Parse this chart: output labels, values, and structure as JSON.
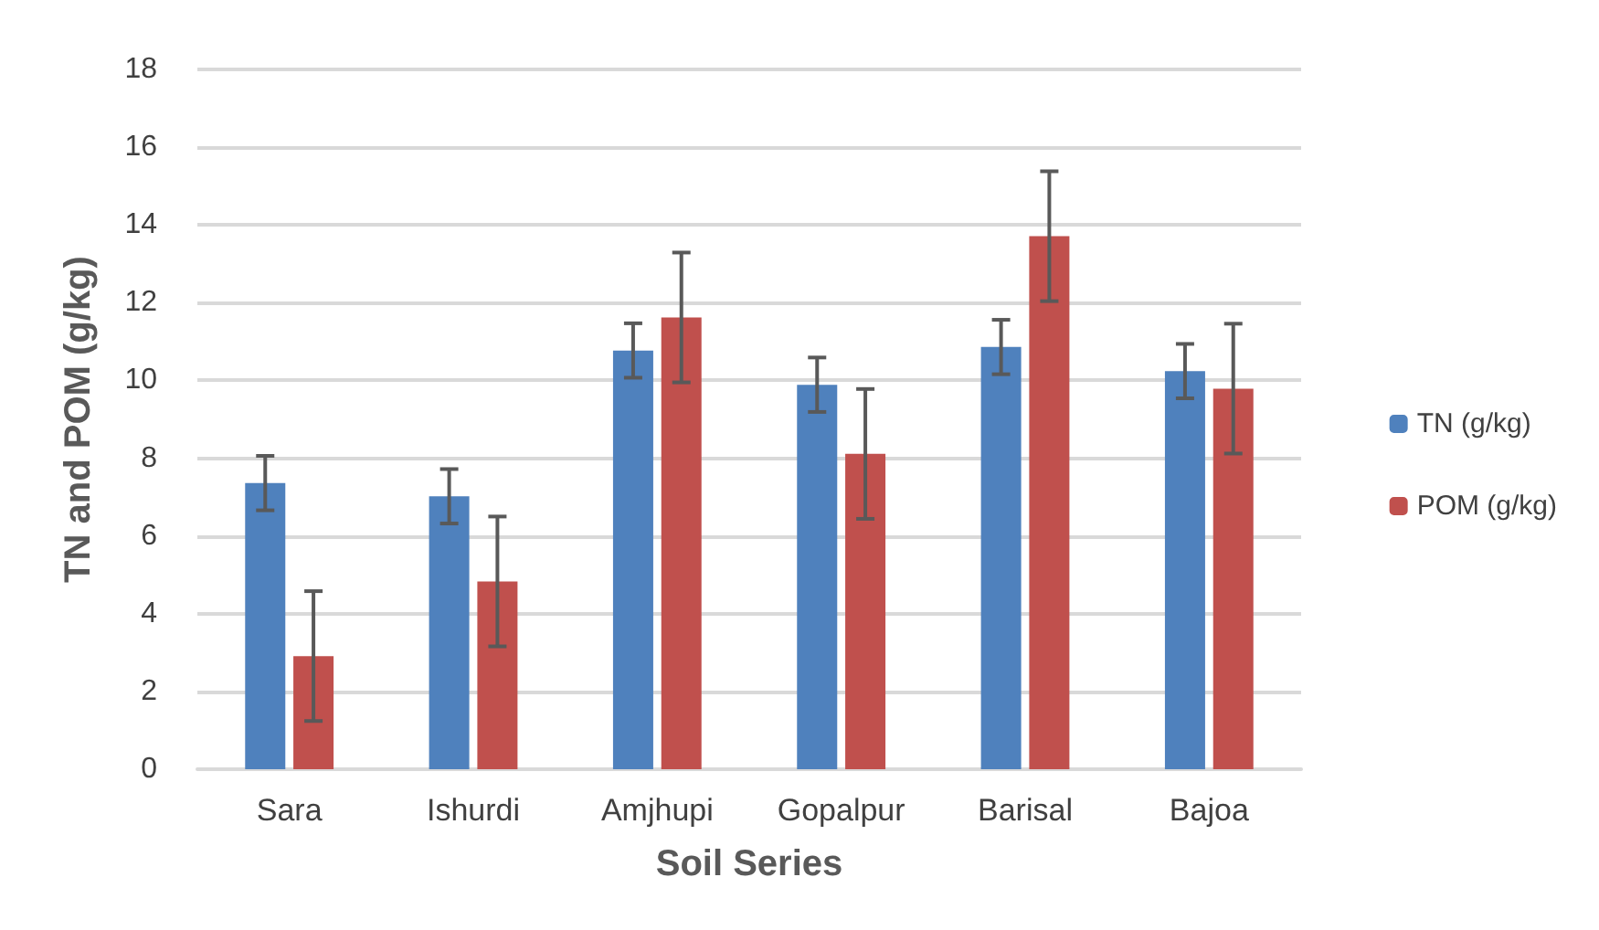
{
  "chart_data": {
    "type": "bar",
    "xlabel": "Soil Series",
    "ylabel": "TN and POM (g/kg)",
    "categories": [
      "Sara",
      "Ishurdi",
      "Amjhupi",
      "Gopalpur",
      "Barisal",
      "Bajoa"
    ],
    "series": [
      {
        "name": "TN (g/kg)",
        "color": "#4f81bd",
        "values": [
          7.36,
          7.02,
          10.77,
          9.89,
          10.86,
          10.24
        ],
        "errors": [
          0.7,
          0.7,
          0.7,
          0.7,
          0.7,
          0.7
        ]
      },
      {
        "name": "POM (g/kg)",
        "color": "#c0504d",
        "values": [
          2.91,
          4.83,
          11.62,
          8.11,
          13.71,
          9.79
        ],
        "errors": [
          1.67,
          1.67,
          1.67,
          1.67,
          1.67,
          1.67
        ]
      }
    ],
    "ylim": [
      0,
      18
    ],
    "yticks": [
      0,
      2,
      4,
      6,
      8,
      10,
      12,
      14,
      16,
      18
    ],
    "grid": "y",
    "legend": "right"
  }
}
